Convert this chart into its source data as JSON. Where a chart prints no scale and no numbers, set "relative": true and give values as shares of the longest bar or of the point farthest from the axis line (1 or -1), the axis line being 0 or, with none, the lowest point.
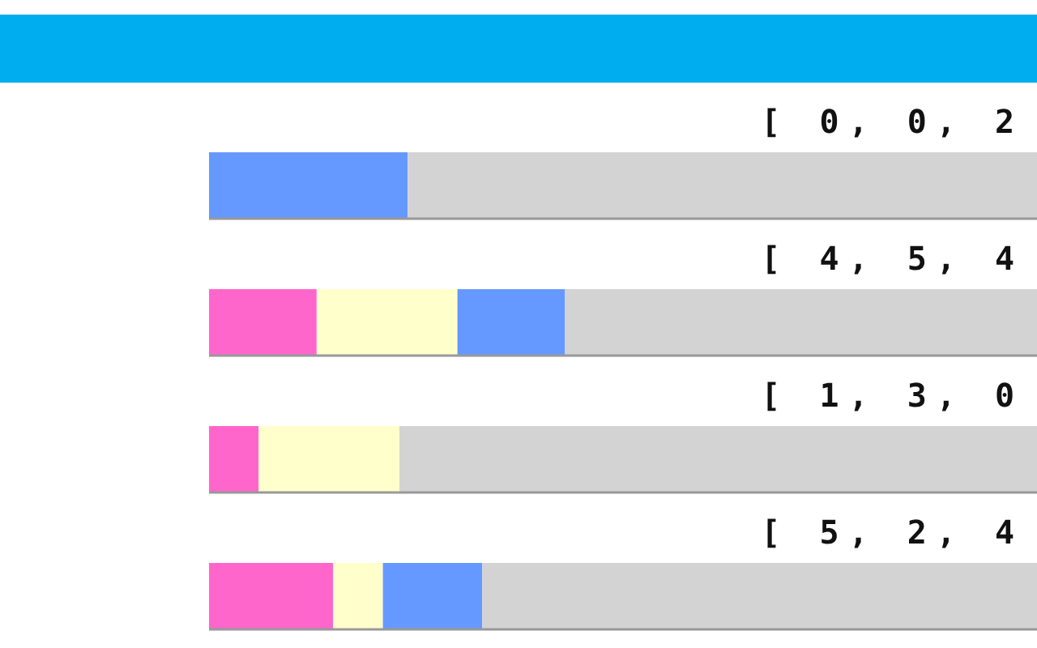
{
  "chart_data": {
    "type": "bar",
    "orientation": "horizontal",
    "stacked": true,
    "relative": true,
    "categories": [
      "[ 0, 0, 2",
      "[ 4, 5, 4",
      "[ 1, 3, 0",
      "[ 5, 2, 4"
    ],
    "series": [
      {
        "color": "#ff66cc",
        "values": [
          0,
          0.13,
          0.06,
          0.15
        ]
      },
      {
        "color": "#ffffcc",
        "values": [
          0,
          0.17,
          0.17,
          0.06
        ]
      },
      {
        "color": "#6699ff",
        "values": [
          0.24,
          0.13,
          0,
          0.12
        ]
      },
      {
        "color": "#d3d3d3",
        "values": [
          0.76,
          0.57,
          0.77,
          0.67
        ]
      }
    ]
  }
}
